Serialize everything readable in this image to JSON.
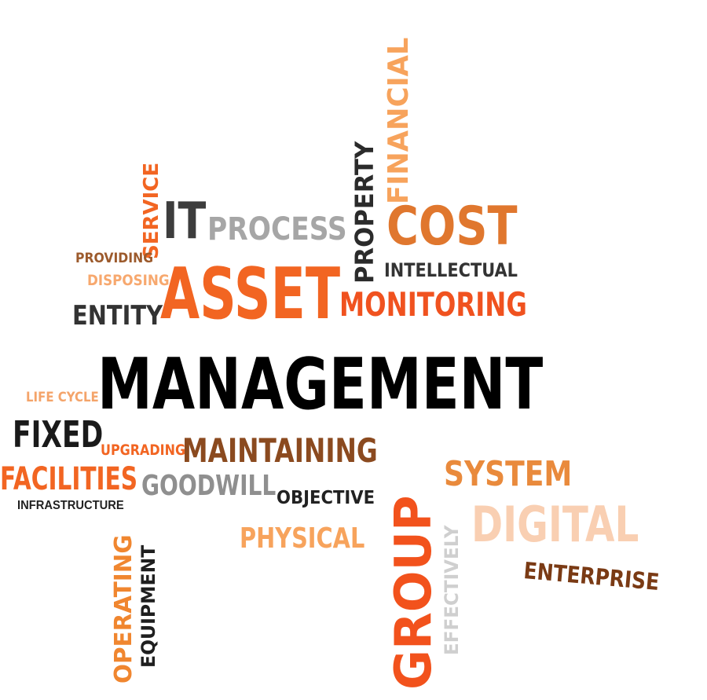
{
  "colors": {
    "background": "#ffffff",
    "orange": "#f26522",
    "light_orange": "#f79b4f",
    "pale_orange": "#f9c9a8",
    "brown": "#8b4513",
    "gray": "#8c8c8c",
    "light_gray": "#c8c8c8",
    "dark": "#333333",
    "black": "#000000"
  },
  "words": [
    {
      "id": "management",
      "text": "MANAGEMENT",
      "color": "#000000"
    },
    {
      "id": "asset",
      "text": "ASSET",
      "color": "#f26522"
    },
    {
      "id": "it",
      "text": "IT",
      "color": "#3d3d3d"
    },
    {
      "id": "process",
      "text": "PROCESS",
      "color": "#a6a6a6"
    },
    {
      "id": "service",
      "text": "SERVICE",
      "color": "#f26522"
    },
    {
      "id": "providing",
      "text": "PROVIDING",
      "color": "#9c5a2c"
    },
    {
      "id": "disposing",
      "text": "DISPOSING",
      "color": "#f7a86e"
    },
    {
      "id": "entity",
      "text": "ENTITY",
      "color": "#333333"
    },
    {
      "id": "property",
      "text": "PROPERTY",
      "color": "#2b2b2b"
    },
    {
      "id": "financial",
      "text": "FINANCIAL",
      "color": "#f7a35c"
    },
    {
      "id": "cost",
      "text": "COST",
      "color": "#e0772e"
    },
    {
      "id": "intellectual",
      "text": "INTELLECTUAL",
      "color": "#333333"
    },
    {
      "id": "monitoring",
      "text": "MONITORING",
      "color": "#f0521f"
    },
    {
      "id": "life_cycle",
      "text": "LIFE CYCLE",
      "color": "#f4a46a"
    },
    {
      "id": "fixed",
      "text": "FIXED",
      "color": "#1a1a1a"
    },
    {
      "id": "upgrading",
      "text": "UPGRADING",
      "color": "#f26522"
    },
    {
      "id": "maintaining",
      "text": "MAINTAINING",
      "color": "#8b4a1f"
    },
    {
      "id": "facilities",
      "text": "FACILITIES",
      "color": "#f26522"
    },
    {
      "id": "infrastructure",
      "text": "INFRASTRUCTURE",
      "color": "#222222"
    },
    {
      "id": "goodwill",
      "text": "GOODWILL",
      "color": "#8f8f8f"
    },
    {
      "id": "objective",
      "text": "OBJECTIVE",
      "color": "#222222"
    },
    {
      "id": "physical",
      "text": "PHYSICAL",
      "color": "#f7a35c"
    },
    {
      "id": "operating",
      "text": "OPERATING",
      "color": "#f0862f"
    },
    {
      "id": "equipment",
      "text": "EQUIPMENT",
      "color": "#1f1f1f"
    },
    {
      "id": "group",
      "text": "GROUP",
      "color": "#f2521c"
    },
    {
      "id": "effectively",
      "text": "EFFECTIVELY",
      "color": "#cfcfcf"
    },
    {
      "id": "system",
      "text": "SYSTEM",
      "color": "#e98a3c"
    },
    {
      "id": "digital",
      "text": "DIGITAL",
      "color": "#f9cfb2"
    },
    {
      "id": "enterprise",
      "text": "ENTERPRISE",
      "color": "#7a3a14"
    }
  ]
}
